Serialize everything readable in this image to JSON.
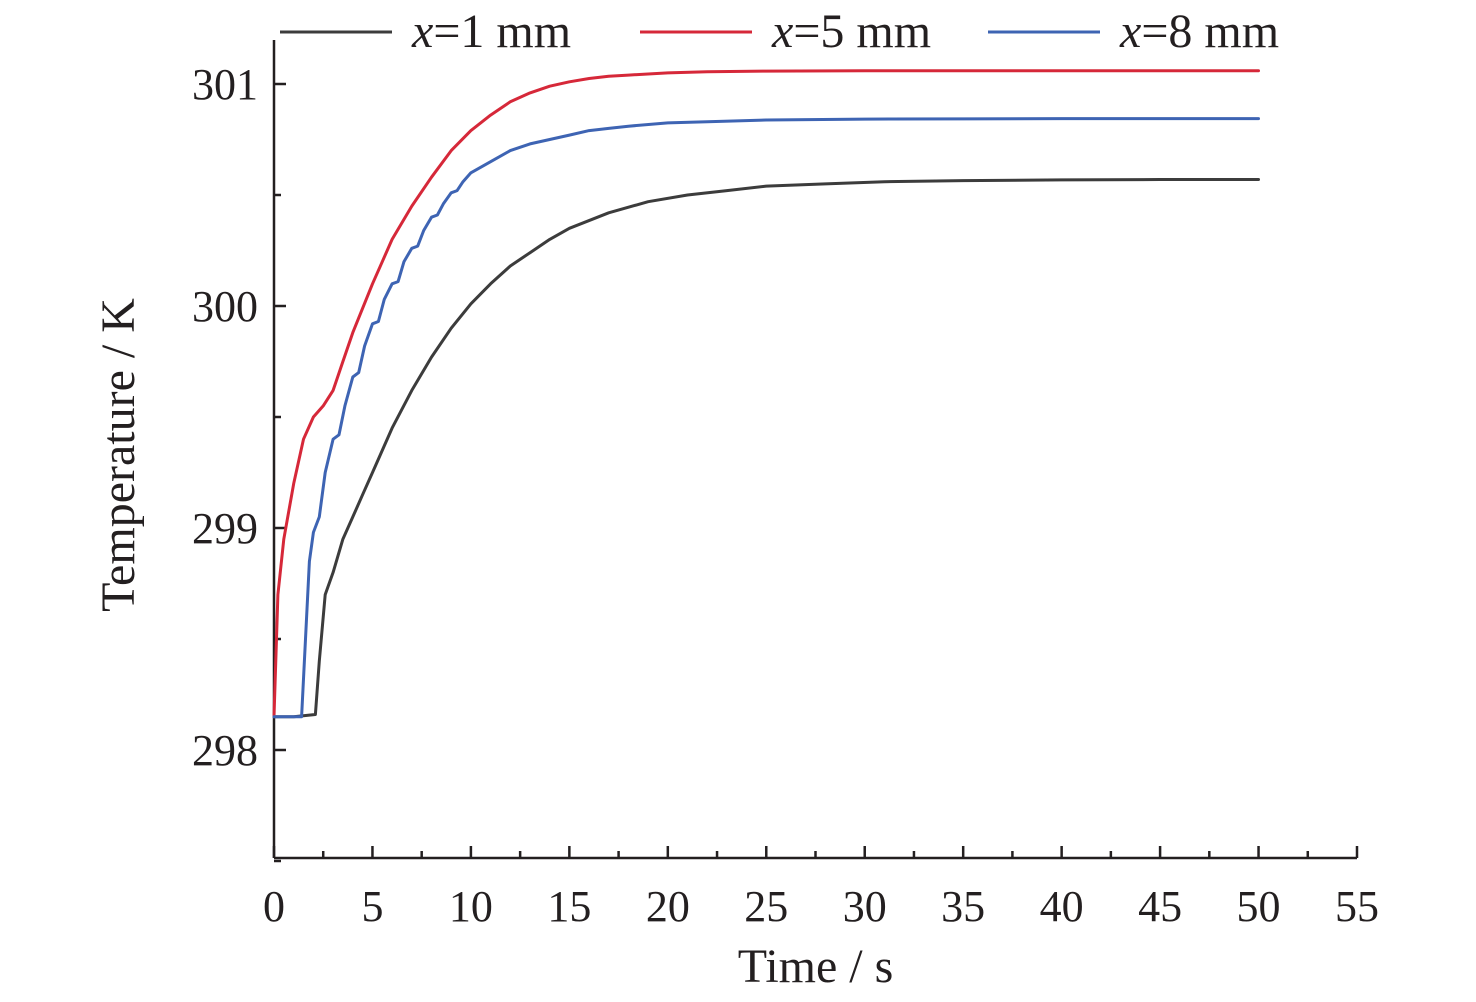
{
  "chart_data": {
    "type": "line",
    "title": "",
    "xlabel": "Time / s",
    "ylabel": "Temperature / K",
    "xlim": [
      0,
      55
    ],
    "ylim": [
      297.5,
      301.2
    ],
    "x_ticks": [
      0,
      5,
      10,
      15,
      20,
      25,
      30,
      35,
      40,
      45,
      50,
      55
    ],
    "x_tick_labels": [
      "0",
      "5",
      "10",
      "15",
      "20",
      "25",
      "30",
      "35",
      "40",
      "45",
      "50",
      "55"
    ],
    "x_minor_step": 2.5,
    "y_ticks": [
      298,
      299,
      300,
      301
    ],
    "y_tick_labels": [
      "298",
      "299",
      "300",
      "301"
    ],
    "y_minor_step": 0.5,
    "grid": false,
    "legend_position": "top",
    "series": [
      {
        "name_var": "x",
        "name_rest": "=1 mm",
        "color": "#3c3c3c",
        "x": [
          0,
          1,
          2.1,
          2.3,
          2.6,
          3,
          3.5,
          4,
          4.5,
          5,
          6,
          7,
          8,
          9,
          10,
          11,
          12,
          13,
          14,
          15,
          17,
          19,
          21,
          23,
          25,
          28,
          31,
          35,
          40,
          45,
          50
        ],
        "y": [
          298.15,
          298.15,
          298.16,
          298.4,
          298.7,
          298.8,
          298.95,
          299.05,
          299.15,
          299.25,
          299.45,
          299.62,
          299.77,
          299.9,
          300.01,
          300.1,
          300.18,
          300.24,
          300.3,
          300.35,
          300.42,
          300.47,
          300.5,
          300.52,
          300.54,
          300.55,
          300.56,
          300.565,
          300.568,
          300.57,
          300.57
        ]
      },
      {
        "name_var": "x",
        "name_rest": "=5 mm",
        "color": "#d62839",
        "x": [
          0,
          0.2,
          0.5,
          1,
          1.5,
          2,
          2.5,
          3,
          3.5,
          4,
          5,
          6,
          7,
          8,
          9,
          10,
          11,
          12,
          13,
          14,
          15,
          16,
          17,
          18,
          20,
          22,
          25,
          30,
          35,
          40,
          45,
          50
        ],
        "y": [
          298.15,
          298.7,
          298.95,
          299.2,
          299.4,
          299.5,
          299.55,
          299.62,
          299.75,
          299.88,
          300.1,
          300.3,
          300.45,
          300.58,
          300.7,
          300.79,
          300.86,
          300.92,
          300.96,
          300.99,
          301.01,
          301.025,
          301.035,
          301.04,
          301.05,
          301.055,
          301.058,
          301.06,
          301.06,
          301.06,
          301.06,
          301.06
        ]
      },
      {
        "name_var": "x",
        "name_rest": "=8 mm",
        "color": "#3e64b3",
        "x": [
          0,
          1.4,
          1.6,
          1.8,
          2,
          2.3,
          2.6,
          3,
          3.3,
          3.6,
          4,
          4.3,
          4.6,
          5,
          5.3,
          5.6,
          6,
          6.3,
          6.6,
          7,
          7.3,
          7.6,
          8,
          8.3,
          8.6,
          9,
          9.3,
          9.6,
          10,
          11,
          12,
          13,
          14,
          15,
          16,
          17,
          18,
          20,
          22,
          25,
          30,
          35,
          40,
          45,
          50
        ],
        "y": [
          298.15,
          298.15,
          298.5,
          298.85,
          298.98,
          299.05,
          299.25,
          299.4,
          299.42,
          299.55,
          299.68,
          299.7,
          299.82,
          299.92,
          299.93,
          300.03,
          300.1,
          300.11,
          300.2,
          300.26,
          300.27,
          300.34,
          300.4,
          300.41,
          300.46,
          300.51,
          300.52,
          300.56,
          300.6,
          300.65,
          300.7,
          300.73,
          300.75,
          300.77,
          300.79,
          300.8,
          300.81,
          300.825,
          300.83,
          300.838,
          300.842,
          300.843,
          300.844,
          300.844,
          300.844
        ]
      }
    ]
  }
}
